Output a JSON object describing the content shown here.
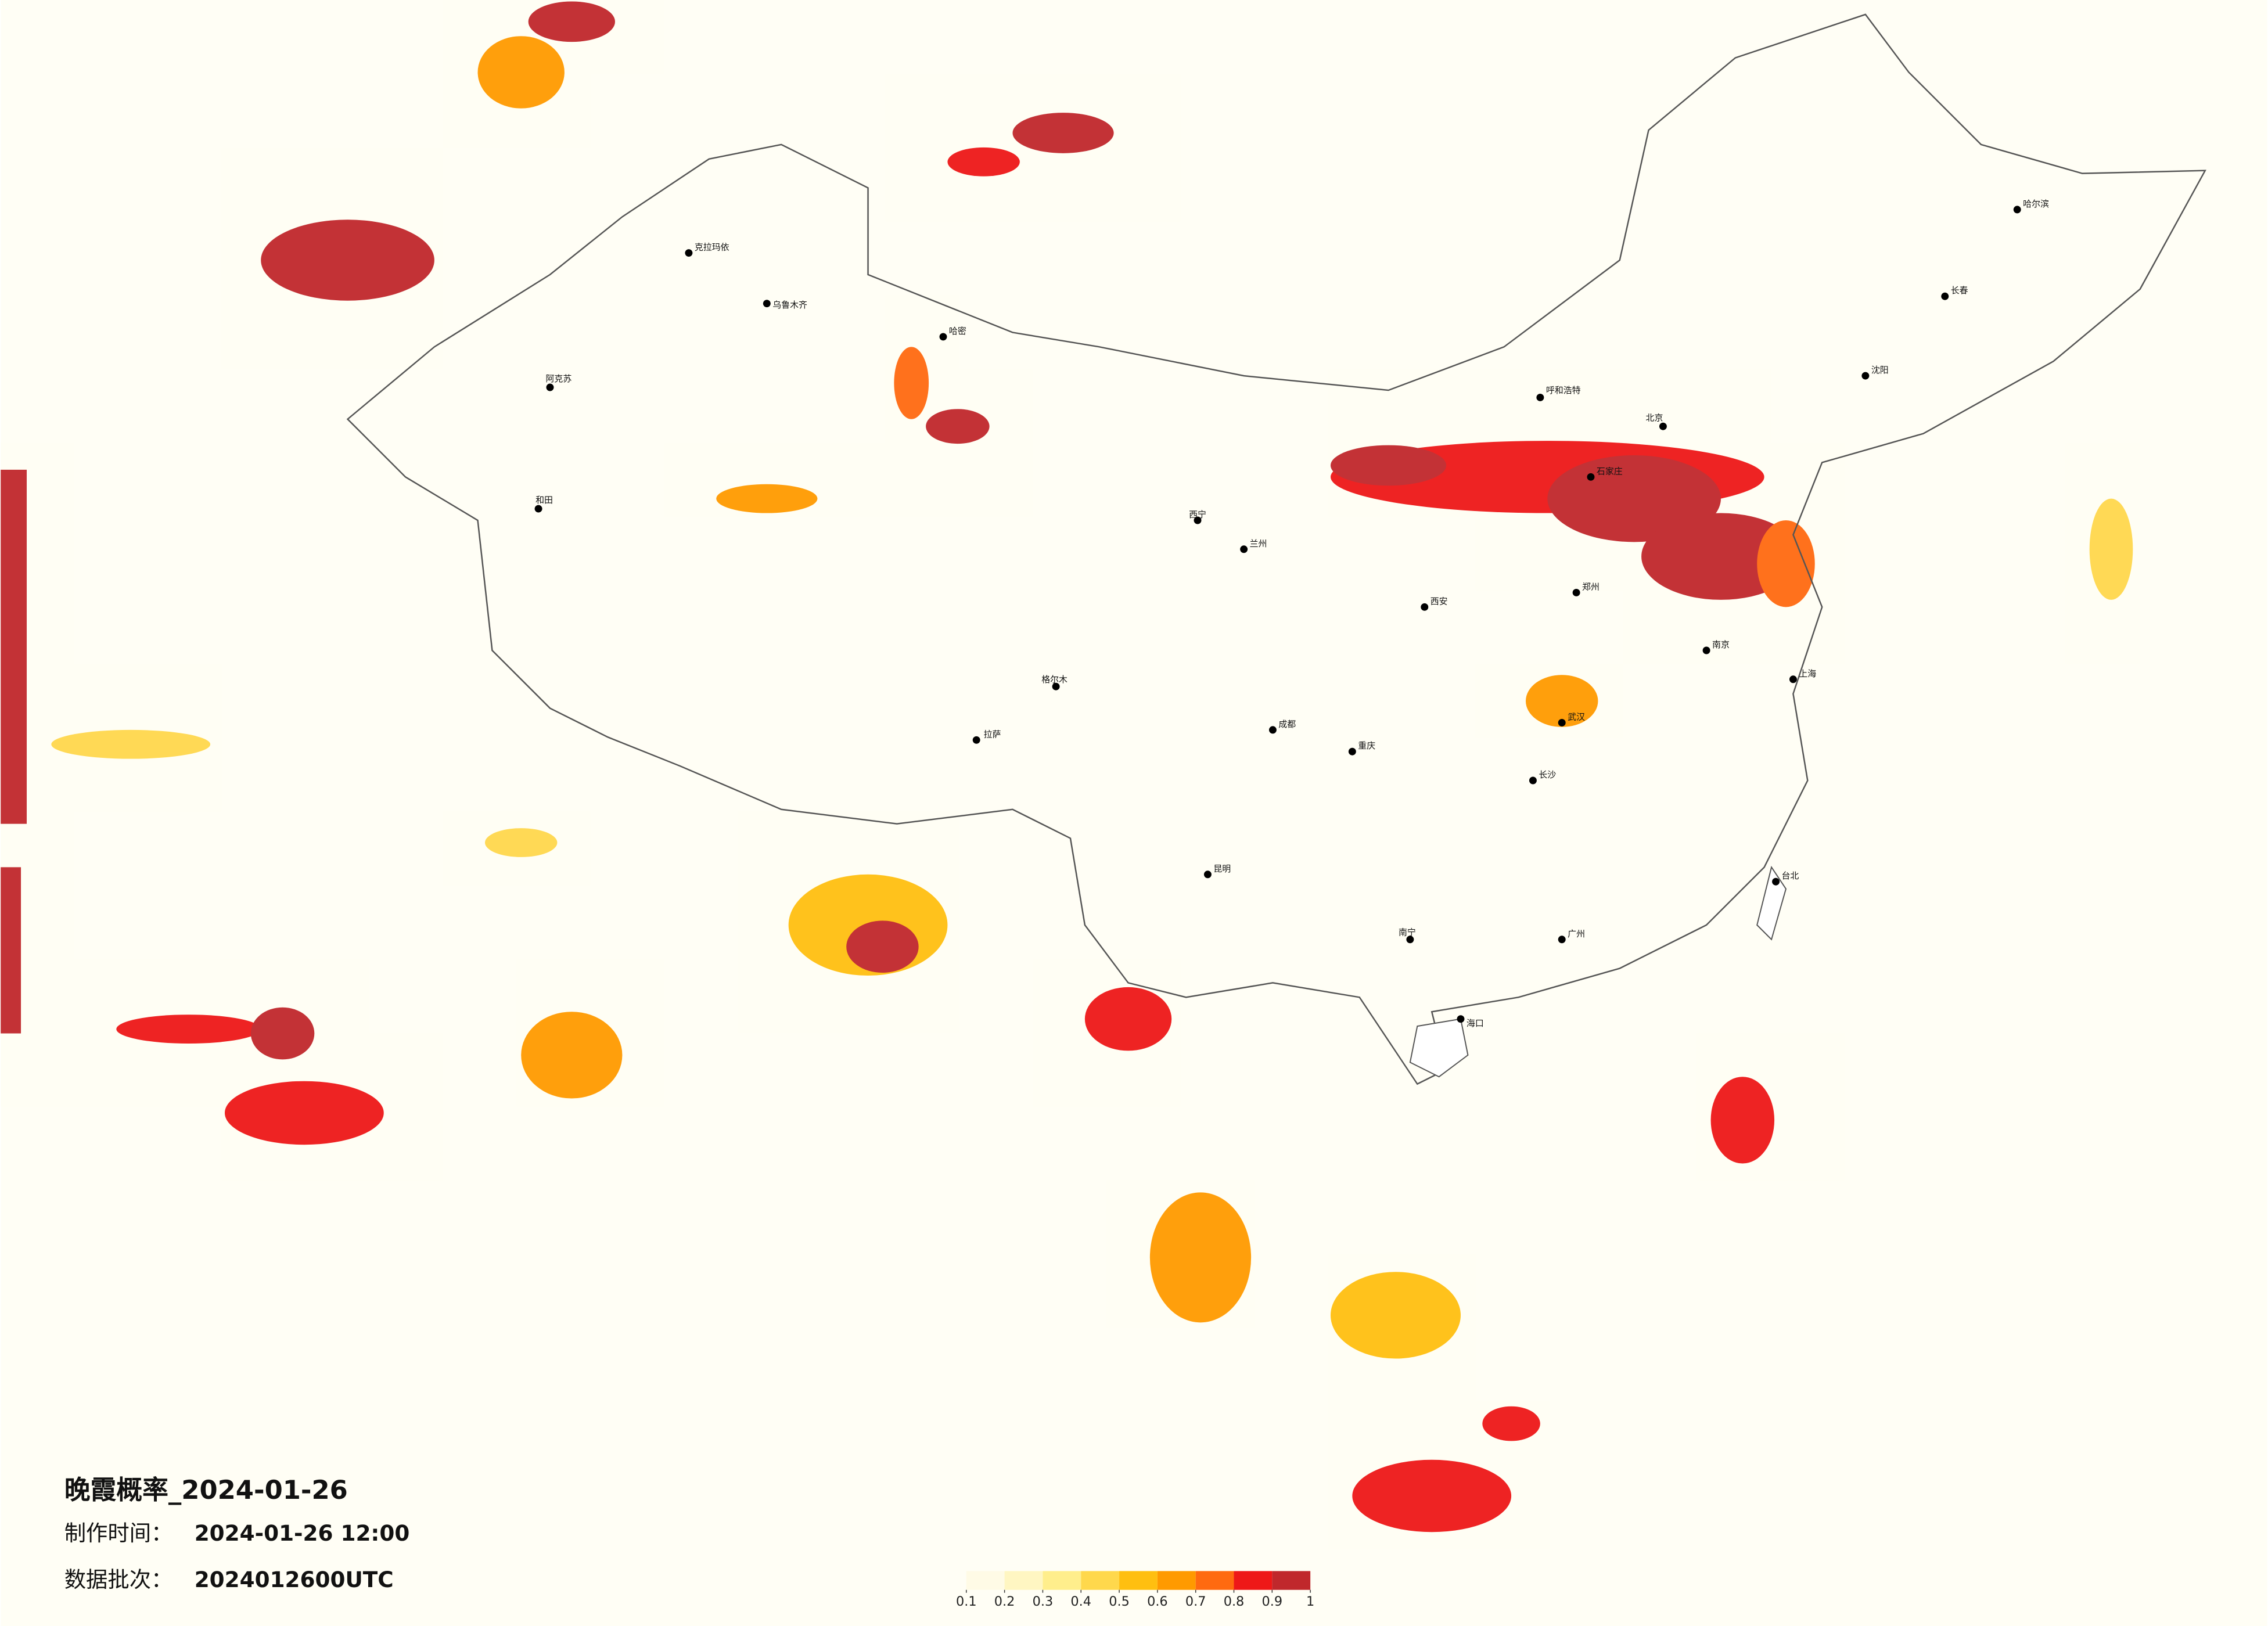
{
  "title": "晚霞概率_2024-01-26",
  "info": [
    {
      "label": "制作时间：",
      "value": "2024-01-26 12:00"
    },
    {
      "label": "数据批次：",
      "value": "2024012600UTC"
    }
  ],
  "colorbar": {
    "ticks": [
      0.1,
      0.2,
      0.3,
      0.4,
      0.5,
      0.6,
      0.7,
      0.8,
      0.9,
      1
    ],
    "colors": [
      "#fffbe6",
      "#fff6c2",
      "#ffee8c",
      "#ffd84c",
      "#ffbf10",
      "#ff9a00",
      "#ff6a10",
      "#ee1818",
      "#c0282c"
    ]
  },
  "cities": [
    "克拉玛依",
    "乌鲁木齐",
    "哈密",
    "阿克苏",
    "和田",
    "格尔木",
    "西宁",
    "兰州",
    "拉萨",
    "呼和浩特",
    "北京",
    "石家庄",
    "郑州",
    "西安",
    "成都",
    "重庆",
    "武汉",
    "长沙",
    "南京",
    "上海",
    "广州",
    "昆明",
    "南宁",
    "海口",
    "哈尔滨",
    "长春",
    "沈阳",
    "台北"
  ]
}
